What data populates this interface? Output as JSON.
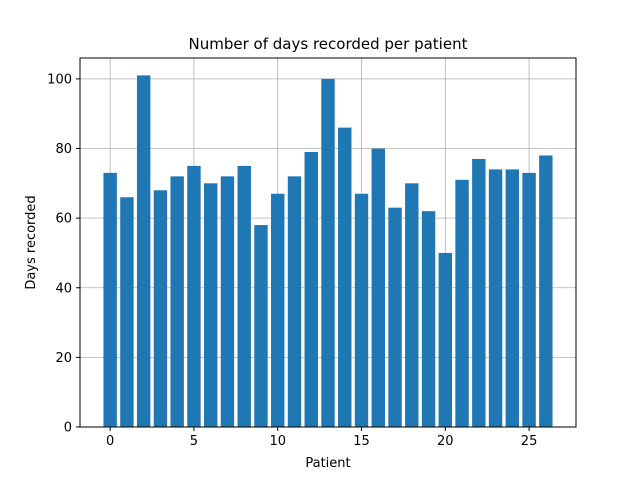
{
  "chart_data": {
    "type": "bar",
    "title": "Number of days recorded per patient",
    "xlabel": "Patient",
    "ylabel": "Days recorded",
    "x": [
      0,
      1,
      2,
      3,
      4,
      5,
      6,
      7,
      8,
      9,
      10,
      11,
      12,
      13,
      14,
      15,
      16,
      17,
      18,
      19,
      20,
      21,
      22,
      23,
      24,
      25,
      26
    ],
    "values": [
      73,
      66,
      101,
      68,
      72,
      75,
      70,
      72,
      75,
      58,
      67,
      72,
      79,
      100,
      86,
      67,
      80,
      63,
      70,
      62,
      50,
      71,
      77,
      74,
      74,
      73,
      78
    ],
    "xlim": [
      -1.8,
      27.8
    ],
    "ylim": [
      0,
      106
    ],
    "xticks": [
      0,
      5,
      10,
      15,
      20,
      25
    ],
    "yticks": [
      0,
      20,
      40,
      60,
      80,
      100
    ],
    "grid": true,
    "bar_color": "#1f77b4"
  }
}
